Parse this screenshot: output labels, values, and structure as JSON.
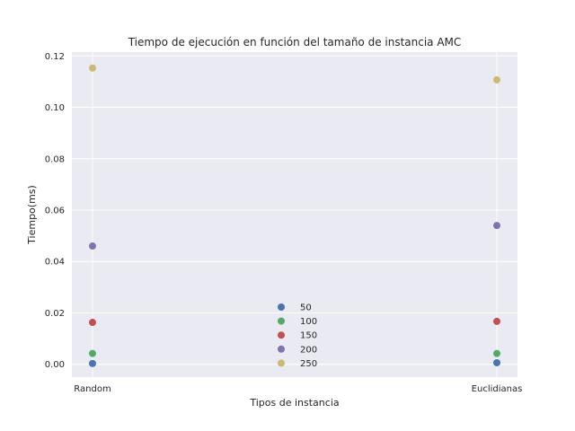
{
  "chart_data": {
    "type": "scatter",
    "title": "Tiempo de ejecución en función del tamaño de instancia AMC",
    "xlabel": "Tipos de instancia",
    "ylabel": "Tiempo(ms)",
    "categories": [
      "Random",
      "Euclidianas"
    ],
    "ylim": [
      -0.005,
      0.1215
    ],
    "yticks": [
      "0.00",
      "0.02",
      "0.04",
      "0.06",
      "0.08",
      "0.10",
      "0.12"
    ],
    "ytick_values": [
      0.0,
      0.02,
      0.04,
      0.06,
      0.08,
      0.1,
      0.12
    ],
    "grid": true,
    "legend_position": "bottom-center",
    "series": [
      {
        "name": "50",
        "color": "#4c72b0",
        "values": [
          0.0003,
          0.0006
        ]
      },
      {
        "name": "100",
        "color": "#55a868",
        "values": [
          0.0042,
          0.0042
        ]
      },
      {
        "name": "150",
        "color": "#c44e52",
        "values": [
          0.0163,
          0.0167
        ]
      },
      {
        "name": "200",
        "color": "#8172b2",
        "values": [
          0.046,
          0.054
        ]
      },
      {
        "name": "250",
        "color": "#ccb974",
        "values": [
          0.1153,
          0.1107
        ]
      }
    ]
  },
  "colors": {
    "plot_background": "#eaeaf2",
    "grid": "#ffffff"
  }
}
